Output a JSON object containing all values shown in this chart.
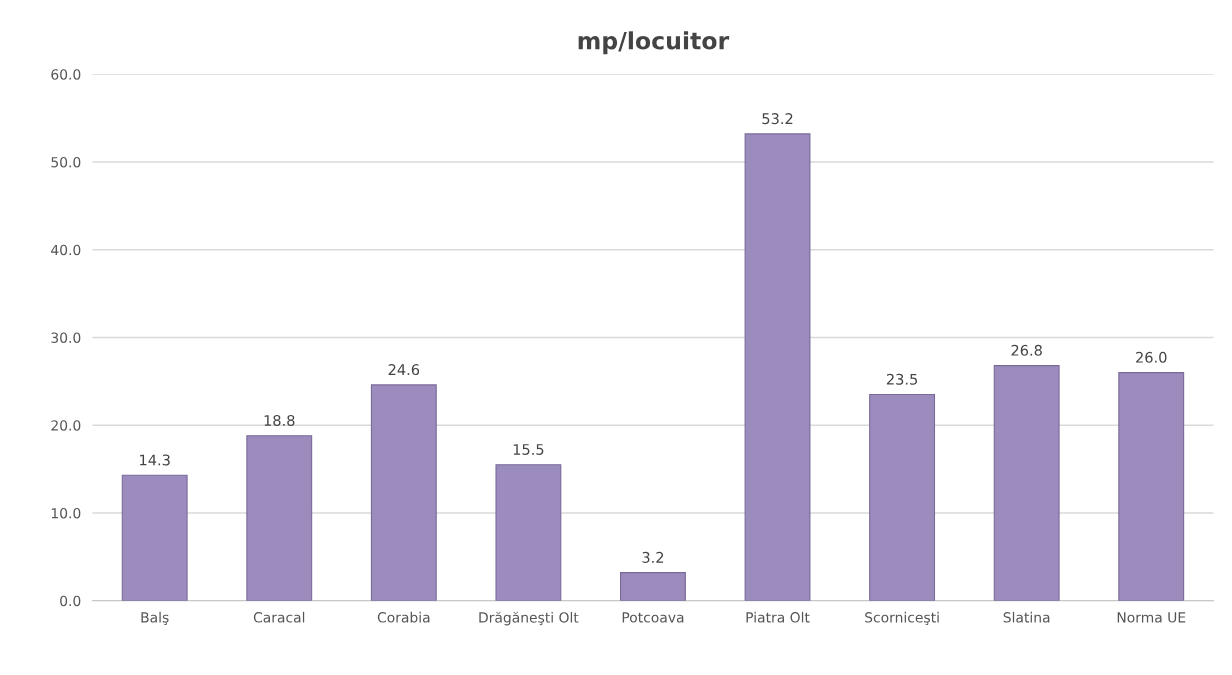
{
  "chart_data": {
    "type": "bar",
    "title": "mp/locuitor",
    "categories": [
      "Balş",
      "Caracal",
      "Corabia",
      "Drăgăneşti Olt",
      "Potcoava",
      "Piatra Olt",
      "Scorniceşti",
      "Slatina",
      "Norma UE"
    ],
    "values": [
      14.3,
      18.8,
      24.6,
      15.5,
      3.2,
      53.2,
      23.5,
      26.8,
      26.0
    ],
    "color": "#9c8bbd",
    "ylim": [
      0,
      60
    ],
    "yticks": [
      {
        "value": 0,
        "label": "0.0"
      },
      {
        "value": 10,
        "label": "10.0"
      },
      {
        "value": 20,
        "label": "20.0"
      },
      {
        "value": 30,
        "label": "30.0"
      },
      {
        "value": 40,
        "label": "40.0"
      },
      {
        "value": 50,
        "label": "50.0"
      },
      {
        "value": 60,
        "label": "60.0"
      }
    ],
    "value_labels": [
      "14.3",
      "18.8",
      "24.6",
      "15.5",
      "3.2",
      "53.2",
      "23.5",
      "26.8",
      "26.0"
    ],
    "grid": "y",
    "legend": false
  }
}
